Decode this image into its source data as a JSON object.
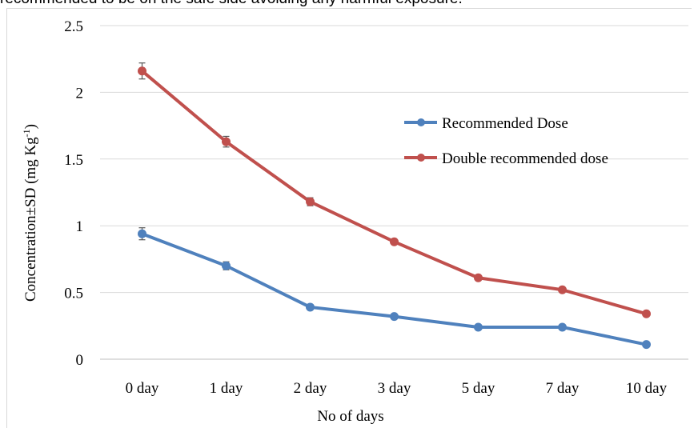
{
  "caption_fragment": "recommended to be on the safe side avoiding any harmful exposure.",
  "chart_data": {
    "type": "line",
    "categories": [
      "0 day",
      "1 day",
      "2 day",
      "3 day",
      "5 day",
      "7 day",
      "10 day"
    ],
    "xlabel": "No of days",
    "ylabel": "Concentration±SD (mg Kg",
    "ylabel_superscript": "-1",
    "ylabel_suffix": ")",
    "ylim": [
      0,
      2.5
    ],
    "yticks": [
      "0",
      "0.5",
      "1",
      "1.5",
      "2",
      "2.5"
    ],
    "grid": true,
    "legend_position": "right-middle",
    "series": [
      {
        "name": "Recommended Dose",
        "color": "#4f81bd",
        "values": [
          0.94,
          0.7,
          0.39,
          0.32,
          0.24,
          0.24,
          0.11
        ],
        "sd": [
          0.045,
          0.03,
          0.0,
          0.0,
          0.0,
          0.0,
          0.0
        ]
      },
      {
        "name": "Double recommended dose",
        "color": "#c0504d",
        "values": [
          2.16,
          1.63,
          1.18,
          0.88,
          0.61,
          0.52,
          0.34
        ],
        "sd": [
          0.06,
          0.04,
          0.03,
          0.0,
          0.0,
          0.0,
          0.0
        ]
      }
    ]
  }
}
